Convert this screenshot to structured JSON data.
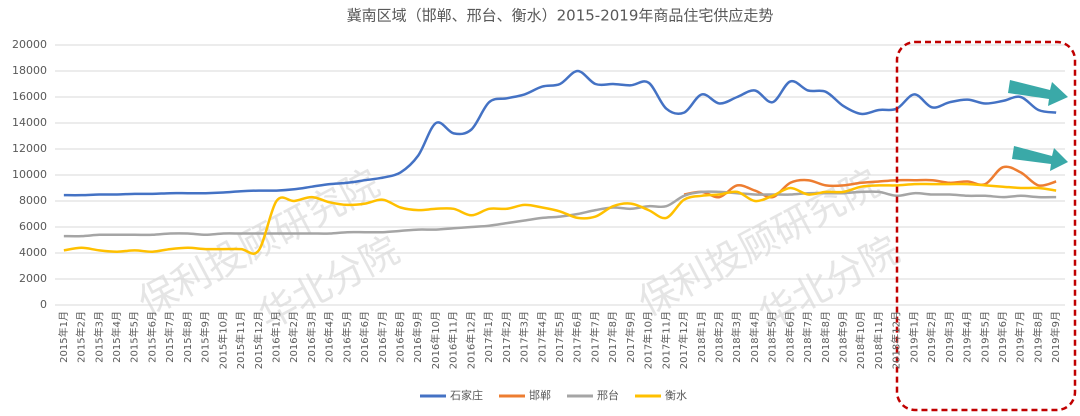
{
  "chart_data": {
    "type": "line",
    "title": "冀南区域（邯郸、邢台、衡水）2015-2019年商品住宅供应走势",
    "watermarks": [
      "保利投顾研究院",
      "华北分院",
      "保利投顾研究院",
      "华北分院"
    ],
    "categories": [
      "2015年1月",
      "2015年2月",
      "2015年3月",
      "2015年4月",
      "2015年5月",
      "2015年6月",
      "2015年7月",
      "2015年8月",
      "2015年9月",
      "2015年10月",
      "2015年11月",
      "2015年12月",
      "2016年1月",
      "2016年2月",
      "2016年3月",
      "2016年4月",
      "2016年5月",
      "2016年6月",
      "2016年7月",
      "2016年8月",
      "2016年9月",
      "2016年10月",
      "2016年11月",
      "2016年12月",
      "2017年1月",
      "2017年2月",
      "2017年3月",
      "2017年4月",
      "2017年5月",
      "2017年6月",
      "2017年7月",
      "2017年8月",
      "2017年9月",
      "2017年10月",
      "2017年11月",
      "2017年12月",
      "2018年1月",
      "2018年2月",
      "2018年3月",
      "2018年4月",
      "2018年5月",
      "2018年6月",
      "2018年7月",
      "2018年8月",
      "2018年9月",
      "2018年10月",
      "2018年11月",
      "2018年12月",
      "2019年1月",
      "2019年2月",
      "2019年3月",
      "2019年4月",
      "2019年5月",
      "2019年6月",
      "2019年7月",
      "2019年8月",
      "2019年9月"
    ],
    "series": [
      {
        "name": "石家庄",
        "color": "#4472c4",
        "values": [
          8450,
          8450,
          8500,
          8500,
          8550,
          8550,
          8600,
          8600,
          8600,
          8650,
          8750,
          8800,
          8800,
          8900,
          9100,
          9300,
          9400,
          9600,
          9800,
          10200,
          11500,
          14000,
          13200,
          13500,
          15600,
          15900,
          16200,
          16800,
          17000,
          18000,
          17000,
          17000,
          16900,
          17100,
          15100,
          14800,
          16200,
          15500,
          16000,
          16500,
          15600,
          17200,
          16500,
          16400,
          15300,
          14700,
          15000,
          15100,
          16200,
          15200,
          15600,
          15800,
          15500,
          15700,
          16000,
          15000,
          14800
        ]
      },
      {
        "name": "邯郸",
        "color": "#ed7d31",
        "values": [
          null,
          null,
          null,
          null,
          null,
          null,
          null,
          null,
          null,
          null,
          null,
          null,
          null,
          null,
          null,
          null,
          null,
          null,
          null,
          null,
          null,
          null,
          null,
          null,
          null,
          null,
          null,
          null,
          null,
          null,
          null,
          null,
          null,
          null,
          null,
          8500,
          8700,
          8300,
          9200,
          8800,
          8300,
          9400,
          9600,
          9200,
          9200,
          9400,
          9500,
          9600,
          9600,
          9600,
          9400,
          9500,
          9300,
          10600,
          10200,
          9200,
          9500
        ]
      },
      {
        "name": "邢台",
        "color": "#a5a5a5",
        "values": [
          5300,
          5300,
          5400,
          5400,
          5400,
          5400,
          5500,
          5500,
          5400,
          5500,
          5500,
          5500,
          5500,
          5500,
          5500,
          5500,
          5600,
          5600,
          5600,
          5700,
          5800,
          5800,
          5900,
          6000,
          6100,
          6300,
          6500,
          6700,
          6800,
          7000,
          7300,
          7500,
          7400,
          7600,
          7600,
          8400,
          8700,
          8700,
          8600,
          8500,
          8500,
          8500,
          8600,
          8600,
          8600,
          8700,
          8700,
          8400,
          8600,
          8500,
          8500,
          8400,
          8400,
          8300,
          8400,
          8300,
          8300
        ]
      },
      {
        "name": "衡水",
        "color": "#ffc000",
        "values": [
          4200,
          4400,
          4200,
          4100,
          4200,
          4100,
          4300,
          4400,
          4300,
          4300,
          4300,
          4200,
          8000,
          8000,
          8300,
          7900,
          7700,
          7800,
          8100,
          7500,
          7300,
          7400,
          7400,
          6900,
          7400,
          7400,
          7700,
          7500,
          7200,
          6700,
          6800,
          7600,
          7800,
          7300,
          6700,
          8100,
          8400,
          8500,
          8700,
          8000,
          8400,
          9000,
          8500,
          8700,
          8700,
          9100,
          9200,
          9200,
          9300,
          9300,
          9300,
          9300,
          9200,
          9100,
          9000,
          9000,
          8800
        ]
      }
    ],
    "ylim": [
      0,
      20000
    ],
    "yticks": [
      0,
      2000,
      4000,
      6000,
      8000,
      10000,
      12000,
      14000,
      16000,
      18000,
      20000
    ],
    "grid": true,
    "legend": "bottom"
  }
}
